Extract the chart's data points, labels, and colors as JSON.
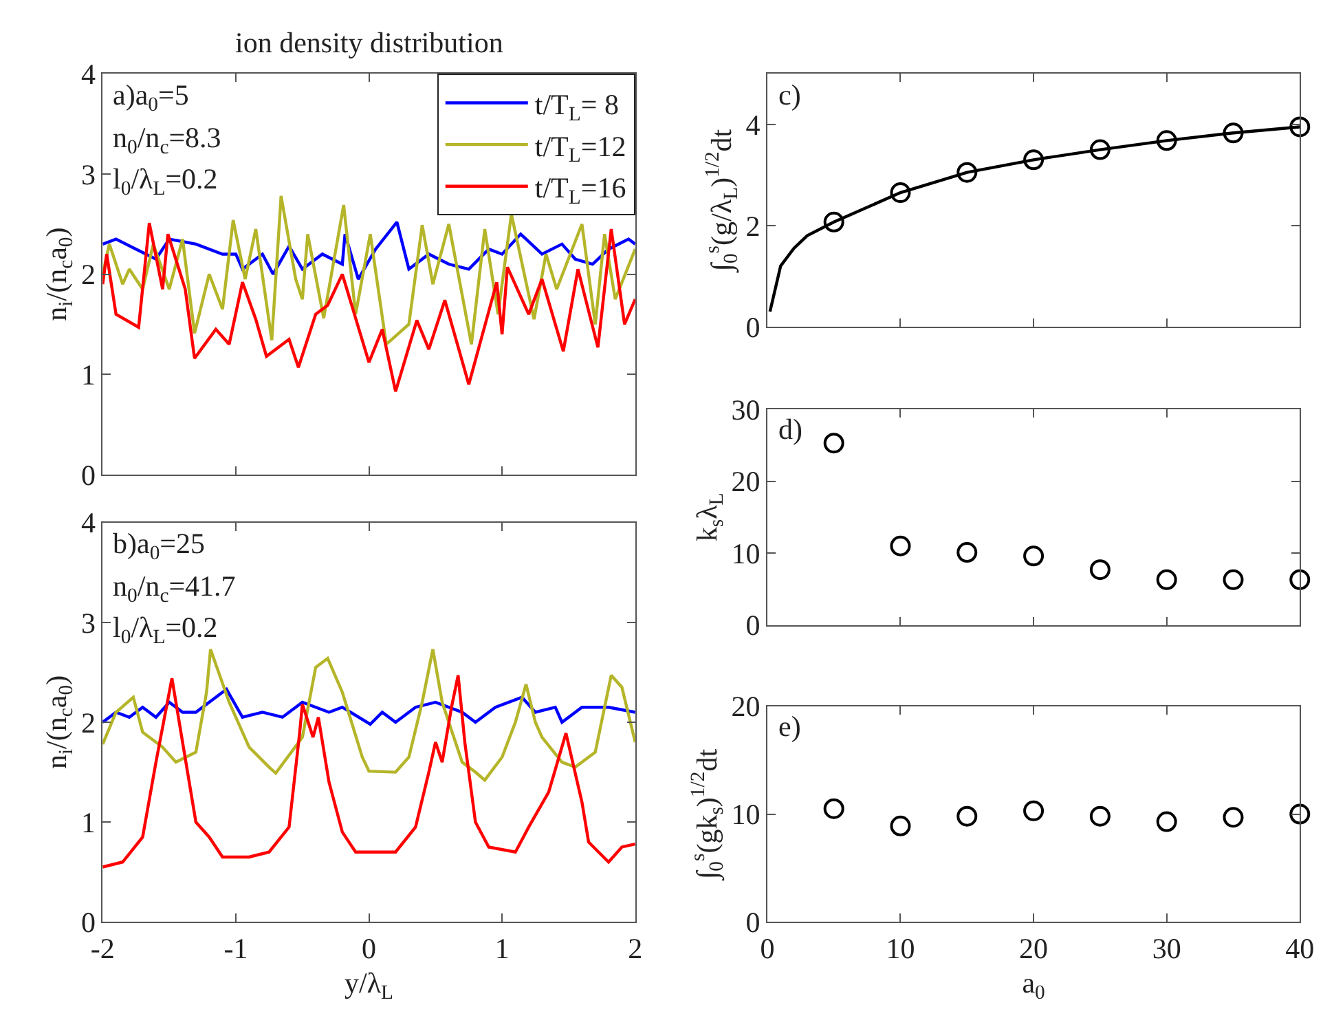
{
  "chart_data": [
    {
      "type": "line",
      "title": "ion density distribution",
      "ylabel": "n$_{i}$/(n$_{c}$a$_{0}$)",
      "xlim": [
        -2,
        2
      ],
      "xticks": [
        -2,
        -1,
        0,
        1,
        2
      ],
      "ylim": [
        0,
        4
      ],
      "yticks": [
        0,
        1,
        2,
        3,
        4
      ],
      "tick_labels": "y",
      "legend": "top right",
      "marker": "none",
      "line_style": "solid",
      "annotations": [
        "a)a$_{0}$=5",
        "n$_{0}$/n$_{c}$=8.3",
        "l$_{0}$/λ$_{L}$=0.2"
      ],
      "series": [
        {
          "name": "t/T$_{L}$= 8",
          "color": "#0000ff",
          "x": [
            -2,
            -1.9,
            -1.75,
            -1.6,
            -1.5,
            -1.3,
            -1.1,
            -1.0,
            -0.95,
            -0.8,
            -0.72,
            -0.6,
            -0.5,
            -0.35,
            -0.2,
            -0.18,
            -0.08,
            0.05,
            0.21,
            0.3,
            0.45,
            0.6,
            0.75,
            0.9,
            1.0,
            1.14,
            1.3,
            1.45,
            1.55,
            1.68,
            1.8,
            1.95,
            2.0
          ],
          "values": [
            2.3,
            2.35,
            2.25,
            2.15,
            2.35,
            2.3,
            2.2,
            2.2,
            2.05,
            2.2,
            2.0,
            2.28,
            2.05,
            2.2,
            2.1,
            2.4,
            1.95,
            2.25,
            2.52,
            2.05,
            2.2,
            2.1,
            2.05,
            2.25,
            2.2,
            2.4,
            2.2,
            2.3,
            2.15,
            2.1,
            2.25,
            2.35,
            2.3
          ]
        },
        {
          "name": "t/T$_{L}$=12",
          "color": "#b5b52a",
          "x": [
            -2,
            -1.95,
            -1.85,
            -1.8,
            -1.7,
            -1.62,
            -1.5,
            -1.4,
            -1.31,
            -1.2,
            -1.1,
            -1.02,
            -0.93,
            -0.85,
            -0.73,
            -0.66,
            -0.55,
            -0.5,
            -0.46,
            -0.34,
            -0.19,
            -0.1,
            0.01,
            0.13,
            0.3,
            0.4,
            0.48,
            0.6,
            0.77,
            0.87,
            0.97,
            1.07,
            1.24,
            1.33,
            1.41,
            1.6,
            1.7,
            1.77,
            1.85,
            2.0
          ],
          "values": [
            2.0,
            2.3,
            1.9,
            2.05,
            1.85,
            2.3,
            1.85,
            2.35,
            1.41,
            2.0,
            1.65,
            2.54,
            1.95,
            2.45,
            1.34,
            2.78,
            1.95,
            1.75,
            2.4,
            1.56,
            2.69,
            1.6,
            2.4,
            1.3,
            1.5,
            2.49,
            1.9,
            2.5,
            1.3,
            2.45,
            1.6,
            2.6,
            1.55,
            2.2,
            1.85,
            2.5,
            1.5,
            2.4,
            1.75,
            2.25
          ]
        },
        {
          "name": "t/T$_{L}$=16",
          "color": "#ff0000",
          "x": [
            -2,
            -1.97,
            -1.9,
            -1.73,
            -1.65,
            -1.55,
            -1.51,
            -1.38,
            -1.31,
            -1.15,
            -1.05,
            -0.95,
            -0.85,
            -0.77,
            -0.6,
            -0.53,
            -0.4,
            -0.31,
            -0.2,
            0.0,
            0.1,
            0.2,
            0.36,
            0.45,
            0.57,
            0.75,
            0.96,
            1.0,
            1.04,
            1.2,
            1.3,
            1.46,
            1.57,
            1.72,
            1.82,
            1.92,
            2.0
          ],
          "values": [
            1.9,
            2.2,
            1.6,
            1.47,
            2.51,
            1.85,
            2.4,
            1.85,
            1.16,
            1.45,
            1.3,
            1.92,
            1.55,
            1.18,
            1.35,
            1.07,
            1.6,
            1.69,
            2.0,
            1.12,
            1.45,
            0.83,
            1.54,
            1.25,
            1.74,
            0.9,
            1.92,
            1.4,
            2.07,
            1.6,
            1.95,
            1.23,
            2.05,
            1.27,
            2.45,
            1.5,
            1.75
          ]
        }
      ]
    },
    {
      "type": "line",
      "xlabel": "y/λ$_{L}$",
      "ylabel": "n$_{i}$/(n$_{c}$a$_{0}$)",
      "xlim": [
        -2,
        2
      ],
      "xticks": [
        -2,
        -1,
        0,
        1,
        2
      ],
      "ylim": [
        0,
        4
      ],
      "yticks": [
        0,
        1,
        2,
        3,
        4
      ],
      "marker": "none",
      "line_style": "solid",
      "annotations": [
        "b)a$_{0}$=25",
        "n$_{0}$/n$_{c}$=41.7",
        "l$_{0}$/λ$_{L}$=0.2"
      ],
      "series": [
        {
          "color": "#0000ff",
          "x": [
            -2,
            -1.9,
            -1.8,
            -1.7,
            -1.6,
            -1.5,
            -1.4,
            -1.3,
            -1.15,
            -1.07,
            -0.95,
            -0.8,
            -0.65,
            -0.5,
            -0.3,
            -0.2,
            0.01,
            0.1,
            0.2,
            0.35,
            0.5,
            0.7,
            0.8,
            0.95,
            1.15,
            1.25,
            1.4,
            1.45,
            1.6,
            1.8,
            2.0
          ],
          "values": [
            2.0,
            2.1,
            2.05,
            2.15,
            2.05,
            2.2,
            2.1,
            2.1,
            2.25,
            2.33,
            2.05,
            2.1,
            2.05,
            2.2,
            2.1,
            2.15,
            1.98,
            2.1,
            2.0,
            2.15,
            2.2,
            2.1,
            2.0,
            2.15,
            2.25,
            2.1,
            2.15,
            2.0,
            2.15,
            2.15,
            2.1
          ]
        },
        {
          "color": "#b5b52a",
          "x": [
            -2,
            -1.9,
            -1.77,
            -1.7,
            -1.55,
            -1.45,
            -1.3,
            -1.22,
            -1.19,
            -1.05,
            -0.9,
            -0.75,
            -0.7,
            -0.5,
            -0.4,
            -0.31,
            -0.2,
            -0.05,
            0.0,
            0.2,
            0.3,
            0.4,
            0.48,
            0.55,
            0.7,
            0.8,
            0.87,
            1.0,
            1.1,
            1.18,
            1.25,
            1.3,
            1.45,
            1.55,
            1.7,
            1.82,
            1.9,
            2.0
          ],
          "values": [
            1.78,
            2.1,
            2.25,
            1.9,
            1.75,
            1.6,
            1.7,
            2.3,
            2.73,
            2.2,
            1.75,
            1.55,
            1.49,
            1.85,
            2.55,
            2.64,
            2.3,
            1.65,
            1.51,
            1.5,
            1.65,
            2.2,
            2.73,
            2.2,
            1.6,
            1.5,
            1.42,
            1.65,
            2.0,
            2.38,
            2.0,
            1.85,
            1.6,
            1.55,
            1.7,
            2.47,
            2.35,
            1.8
          ]
        },
        {
          "color": "#ff0000",
          "x": [
            -2,
            -1.85,
            -1.7,
            -1.6,
            -1.48,
            -1.4,
            -1.3,
            -1.2,
            -1.1,
            -0.9,
            -0.75,
            -0.6,
            -0.52,
            -0.5,
            -0.42,
            -0.38,
            -0.3,
            -0.2,
            -0.1,
            0.2,
            0.35,
            0.45,
            0.5,
            0.55,
            0.62,
            0.67,
            0.72,
            0.8,
            0.9,
            1.1,
            1.2,
            1.35,
            1.48,
            1.6,
            1.65,
            1.8,
            1.9,
            2.0
          ],
          "values": [
            0.55,
            0.6,
            0.85,
            1.6,
            2.44,
            1.8,
            1.0,
            0.85,
            0.65,
            0.65,
            0.7,
            0.95,
            1.9,
            2.18,
            1.85,
            2.05,
            1.4,
            0.9,
            0.7,
            0.7,
            0.95,
            1.5,
            1.8,
            1.6,
            2.15,
            2.47,
            1.8,
            1.0,
            0.75,
            0.7,
            0.95,
            1.3,
            1.89,
            1.2,
            0.8,
            0.6,
            0.75,
            0.78
          ]
        }
      ]
    },
    {
      "type": "line",
      "ylabel": "∫$_{0}$$^{s}$(g/λ$_{L}$)$^{1/2}$dt",
      "xlim": [
        0,
        40
      ],
      "xticks": [
        0,
        10,
        20,
        30,
        40
      ],
      "ylim": [
        0,
        5
      ],
      "yticks": [
        0,
        2,
        4
      ],
      "tick_labels": "y",
      "annotations": [
        "c)"
      ],
      "series": [
        {
          "type": "line",
          "marker": "none",
          "line_style": "solid",
          "color": "#000000",
          "x": [
            0.2,
            1,
            2,
            3,
            5,
            10,
            15,
            20,
            25,
            30,
            35,
            40
          ],
          "values": [
            0.3,
            1.2,
            1.55,
            1.8,
            2.07,
            2.65,
            3.05,
            3.3,
            3.5,
            3.68,
            3.83,
            3.95
          ]
        },
        {
          "type": "scatter",
          "marker": "circle",
          "color": "#000000",
          "x": [
            5,
            10,
            15,
            20,
            25,
            30,
            35,
            40
          ],
          "values": [
            2.07,
            2.65,
            3.05,
            3.3,
            3.5,
            3.68,
            3.83,
            3.95
          ]
        }
      ]
    },
    {
      "type": "scatter",
      "ylabel": "k$_{s}$λ$_{L}$",
      "xlim": [
        0,
        40
      ],
      "xticks": [
        0,
        10,
        20,
        30,
        40
      ],
      "ylim": [
        0,
        30
      ],
      "yticks": [
        0,
        10,
        20,
        30
      ],
      "tick_labels": "y",
      "marker": "circle",
      "annotations": [
        "d)"
      ],
      "x": [
        5,
        10,
        15,
        20,
        25,
        30,
        35,
        40
      ],
      "series": [
        {
          "color": "#000000",
          "values": [
            25.3,
            11.0,
            10.1,
            9.6,
            7.7,
            6.3,
            6.3,
            6.3
          ]
        }
      ]
    },
    {
      "type": "scatter",
      "xlabel": "a$_{0}$",
      "ylabel": "∫$_{0}$$^{s}$(gk$_{s}$)$^{1/2}$dt",
      "xlim": [
        0,
        40
      ],
      "xticks": [
        0,
        10,
        20,
        30,
        40
      ],
      "ylim": [
        0,
        20
      ],
      "yticks": [
        0,
        10,
        20
      ],
      "marker": "circle",
      "annotations": [
        "e)"
      ],
      "x": [
        5,
        10,
        15,
        20,
        25,
        30,
        35,
        40
      ],
      "series": [
        {
          "color": "#000000",
          "values": [
            10.5,
            8.9,
            9.8,
            10.3,
            9.8,
            9.3,
            9.7,
            10.0
          ]
        }
      ]
    }
  ]
}
